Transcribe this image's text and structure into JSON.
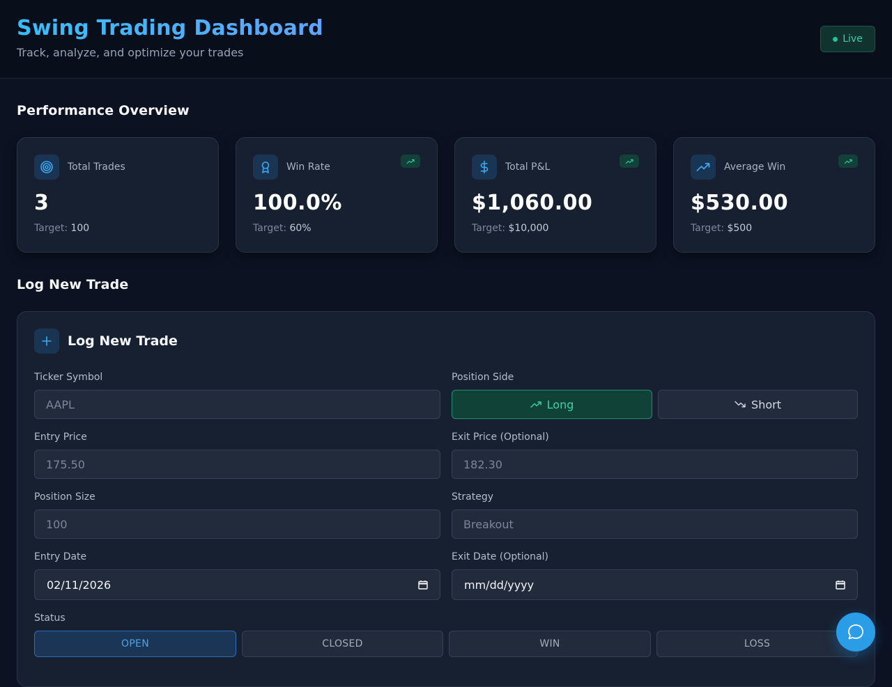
{
  "header": {
    "title": "Swing Trading Dashboard",
    "subtitle": "Track, analyze, and optimize your trades",
    "live_label": "Live"
  },
  "overview": {
    "title": "Performance Overview",
    "target_prefix": "Target:",
    "cards": [
      {
        "icon": "target-icon",
        "label": "Total Trades",
        "value": "3",
        "target": "100",
        "trend": false
      },
      {
        "icon": "award-icon",
        "label": "Win Rate",
        "value": "100.0%",
        "target": "60%",
        "trend": true
      },
      {
        "icon": "dollar-icon",
        "label": "Total P&L",
        "value": "$1,060.00",
        "target": "$10,000",
        "trend": true
      },
      {
        "icon": "trending-up-icon",
        "label": "Average Win",
        "value": "$530.00",
        "target": "$500",
        "trend": true
      }
    ]
  },
  "log_section": {
    "title": "Log New Trade"
  },
  "form": {
    "title": "Log New Trade",
    "ticker": {
      "label": "Ticker Symbol",
      "placeholder": "AAPL"
    },
    "side": {
      "label": "Position Side",
      "long": "Long",
      "short": "Short",
      "selected": "Long"
    },
    "entry_price": {
      "label": "Entry Price",
      "placeholder": "175.50"
    },
    "exit_price": {
      "label": "Exit Price (Optional)",
      "placeholder": "182.30"
    },
    "position_size": {
      "label": "Position Size",
      "placeholder": "100"
    },
    "strategy": {
      "label": "Strategy",
      "placeholder": "Breakout"
    },
    "entry_date": {
      "label": "Entry Date",
      "value": "02/11/2026"
    },
    "exit_date": {
      "label": "Exit Date (Optional)",
      "value": "mm/dd/yyyy"
    },
    "status": {
      "label": "Status",
      "options": [
        "OPEN",
        "CLOSED",
        "WIN",
        "LOSS"
      ],
      "selected": "OPEN"
    }
  },
  "colors": {
    "accent": "#38bdf8",
    "success": "#36d5a8",
    "background": "#0c1222",
    "card": "#172031"
  }
}
